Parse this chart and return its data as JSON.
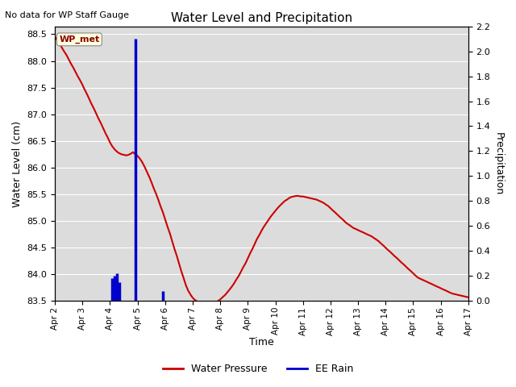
{
  "title": "Water Level and Precipitation",
  "subtitle": "No data for WP Staff Gauge",
  "xlabel": "Time",
  "ylabel_left": "Water Level (cm)",
  "ylabel_right": "Precipitation",
  "annotation": "WP_met",
  "background_color": "#dcdcdc",
  "water_pressure_color": "#cc0000",
  "rain_color": "#0000cc",
  "ylim_left": [
    83.5,
    88.65
  ],
  "ylim_right": [
    0.0,
    2.2
  ],
  "yticks_left": [
    83.5,
    84.0,
    84.5,
    85.0,
    85.5,
    86.0,
    86.5,
    87.0,
    87.5,
    88.0,
    88.5
  ],
  "yticks_right": [
    0.0,
    0.2,
    0.4,
    0.6,
    0.8,
    1.0,
    1.2,
    1.4,
    1.6,
    1.8,
    2.0,
    2.2
  ],
  "water_pressure_x": [
    2.0,
    2.08,
    2.17,
    2.25,
    2.33,
    2.42,
    2.5,
    2.58,
    2.67,
    2.75,
    2.83,
    2.92,
    3.0,
    3.08,
    3.17,
    3.25,
    3.33,
    3.42,
    3.5,
    3.58,
    3.67,
    3.75,
    3.83,
    3.92,
    4.0,
    4.08,
    4.17,
    4.25,
    4.33,
    4.42,
    4.5,
    4.58,
    4.67,
    4.75,
    4.83,
    4.92,
    5.0,
    5.08,
    5.17,
    5.25,
    5.33,
    5.42,
    5.5,
    5.58,
    5.67,
    5.75,
    5.83,
    5.92,
    6.0,
    6.08,
    6.17,
    6.25,
    6.33,
    6.42,
    6.5,
    6.58,
    6.67,
    6.75,
    6.83,
    6.92,
    7.0,
    7.08,
    7.17,
    7.25,
    7.33,
    7.42,
    7.5,
    7.58,
    7.67,
    7.75,
    7.83,
    7.92,
    8.0,
    8.08,
    8.17,
    8.25,
    8.33,
    8.42,
    8.5,
    8.58,
    8.67,
    8.75,
    8.83,
    8.92,
    9.0,
    9.08,
    9.17,
    9.25,
    9.33,
    9.42,
    9.5,
    9.58,
    9.67,
    9.75,
    9.83,
    9.92,
    10.0,
    10.08,
    10.17,
    10.25,
    10.33,
    10.42,
    10.5,
    10.58,
    10.67,
    10.75,
    10.83,
    10.92,
    11.0,
    11.08,
    11.17,
    11.25,
    11.33,
    11.42,
    11.5,
    11.58,
    11.67,
    11.75,
    11.83,
    11.92,
    12.0,
    12.08,
    12.17,
    12.25,
    12.33,
    12.42,
    12.5,
    12.58,
    12.67,
    12.75,
    12.83,
    12.92,
    13.0,
    13.08,
    13.17,
    13.25,
    13.33,
    13.42,
    13.5,
    13.58,
    13.67,
    13.75,
    13.83,
    13.92,
    14.0,
    14.08,
    14.17,
    14.25,
    14.33,
    14.42,
    14.5,
    14.58,
    14.67,
    14.75,
    14.83,
    14.92,
    15.0,
    15.08,
    15.17,
    15.25,
    15.33,
    15.42,
    15.5,
    15.58,
    15.67,
    15.75,
    15.83,
    15.92,
    16.0,
    16.08,
    16.17,
    16.25,
    16.33,
    16.42,
    16.5,
    16.58,
    16.67,
    16.75,
    16.83,
    16.92,
    17.0
  ],
  "water_pressure_y": [
    88.45,
    88.39,
    88.32,
    88.25,
    88.18,
    88.11,
    88.03,
    87.95,
    87.87,
    87.79,
    87.71,
    87.63,
    87.55,
    87.46,
    87.37,
    87.28,
    87.19,
    87.1,
    87.01,
    86.92,
    86.83,
    86.74,
    86.65,
    86.56,
    86.47,
    86.4,
    86.34,
    86.3,
    86.27,
    86.25,
    86.24,
    86.23,
    86.24,
    86.26,
    86.29,
    86.25,
    86.22,
    86.17,
    86.1,
    86.02,
    85.93,
    85.83,
    85.73,
    85.62,
    85.51,
    85.4,
    85.28,
    85.16,
    85.03,
    84.9,
    84.77,
    84.63,
    84.49,
    84.35,
    84.21,
    84.07,
    83.93,
    83.8,
    83.7,
    83.62,
    83.56,
    83.52,
    83.49,
    83.47,
    83.45,
    83.44,
    83.43,
    83.43,
    83.44,
    83.45,
    83.47,
    83.5,
    83.53,
    83.57,
    83.61,
    83.66,
    83.71,
    83.77,
    83.83,
    83.9,
    83.97,
    84.05,
    84.13,
    84.21,
    84.3,
    84.39,
    84.48,
    84.57,
    84.66,
    84.74,
    84.82,
    84.89,
    84.96,
    85.02,
    85.08,
    85.14,
    85.19,
    85.24,
    85.29,
    85.33,
    85.37,
    85.4,
    85.43,
    85.45,
    85.46,
    85.47,
    85.47,
    85.46,
    85.46,
    85.45,
    85.44,
    85.43,
    85.42,
    85.41,
    85.4,
    85.38,
    85.36,
    85.34,
    85.31,
    85.28,
    85.24,
    85.2,
    85.16,
    85.12,
    85.08,
    85.04,
    85.0,
    84.96,
    84.93,
    84.9,
    84.87,
    84.85,
    84.83,
    84.81,
    84.79,
    84.77,
    84.75,
    84.73,
    84.71,
    84.68,
    84.65,
    84.62,
    84.58,
    84.54,
    84.5,
    84.46,
    84.42,
    84.38,
    84.34,
    84.3,
    84.26,
    84.22,
    84.18,
    84.14,
    84.1,
    84.06,
    84.02,
    83.98,
    83.94,
    83.92,
    83.9,
    83.88,
    83.86,
    83.84,
    83.82,
    83.8,
    83.78,
    83.76,
    83.74,
    83.72,
    83.7,
    83.68,
    83.66,
    83.64,
    83.63,
    83.62,
    83.61,
    83.6,
    83.59,
    83.58,
    83.57
  ],
  "rain_bars": [
    {
      "x": 4.08,
      "height": 0.18
    },
    {
      "x": 4.17,
      "height": 0.2
    },
    {
      "x": 4.25,
      "height": 0.22
    },
    {
      "x": 4.33,
      "height": 0.15
    },
    {
      "x": 4.92,
      "height": 2.1
    },
    {
      "x": 5.92,
      "height": 0.08
    }
  ],
  "xtick_positions": [
    2,
    3,
    4,
    5,
    6,
    7,
    8,
    9,
    10,
    11,
    12,
    13,
    14,
    15,
    16,
    17
  ],
  "xtick_labels": [
    "Apr 2",
    "Apr 3",
    "Apr 4",
    "Apr 5",
    "Apr 6",
    "Apr 7",
    "Apr 8",
    "Apr 9",
    "Apr 10",
    "Apr 11",
    "Apr 12",
    "Apr 13",
    "Apr 14",
    "Apr 15",
    "Apr 16",
    "Apr 17"
  ],
  "xlim": [
    2,
    17
  ],
  "legend_labels": [
    "Water Pressure",
    "EE Rain"
  ]
}
